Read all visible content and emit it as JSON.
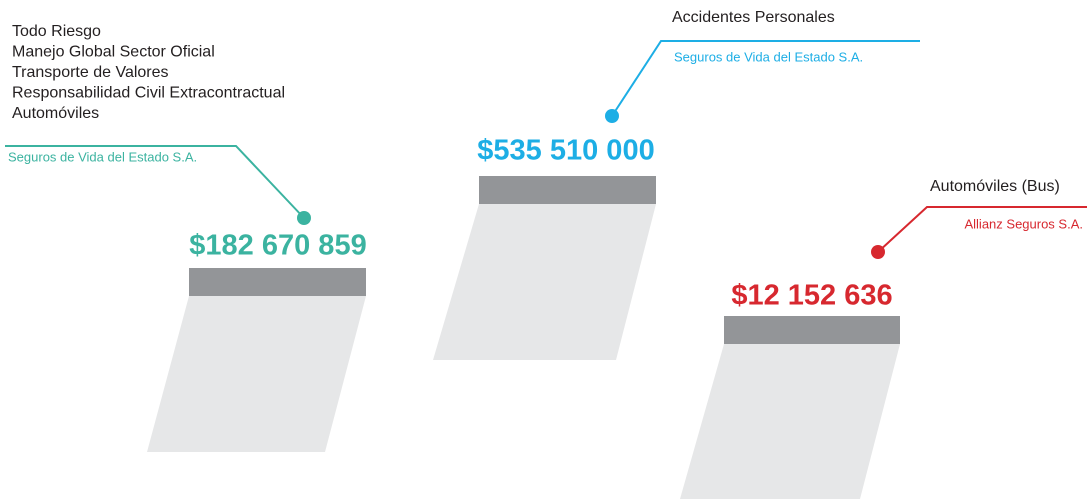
{
  "items": [
    {
      "policies": [
        "Todo Riesgo",
        "Manejo Global Sector Oficial",
        "Transporte de Valores",
        "Responsabilidad Civil Extracontractual",
        "Automóviles"
      ],
      "insurer": "Seguros de Vida del Estado S.A.",
      "amount": "$182 670 859",
      "color": "#3bb3a0"
    },
    {
      "policies": [
        "Accidentes Personales"
      ],
      "insurer": "Seguros de Vida del Estado S.A.",
      "amount": "$535 510 000",
      "color": "#1daee5"
    },
    {
      "policies": [
        "Automóviles (Bus)"
      ],
      "insurer": "Allianz Seguros S.A.",
      "amount": "$12 152 636",
      "color": "#d7282f"
    }
  ]
}
